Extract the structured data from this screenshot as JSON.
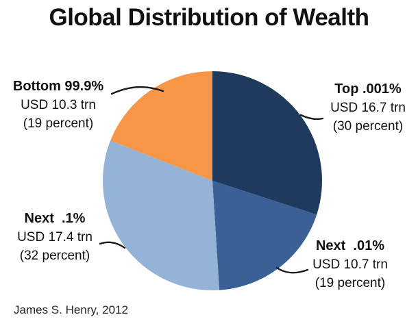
{
  "title": "Global Distribution of Wealth",
  "attribution": "James S. Henry, 2012",
  "colors": {
    "slice_top_001": "#1F3A5F",
    "slice_next_01": "#3A6095",
    "slice_next_1": "#95B3D7",
    "slice_bottom_999": "#F79646",
    "leader_line": "#1a1a1a",
    "text": "#111111",
    "background": "#ffffff"
  },
  "chart_data": {
    "type": "pie",
    "title": "Global Distribution of Wealth",
    "start_angle_deg": 0,
    "direction": "clockwise",
    "legend_position": "none",
    "units": "USD trillions",
    "slices": [
      {
        "label": "Top .001%",
        "value_label": "USD 16.7 trn",
        "percent_label": "(30 percent)",
        "usd_trn": 16.7,
        "percent": 30,
        "color": "#1F3A5F"
      },
      {
        "label": "Next  .01%",
        "value_label": "USD 10.7 trn",
        "percent_label": "(19 percent)",
        "usd_trn": 10.7,
        "percent": 19,
        "color": "#3A6095"
      },
      {
        "label": "Next  .1%",
        "value_label": "USD 17.4 trn",
        "percent_label": "(32 percent)",
        "usd_trn": 17.4,
        "percent": 32,
        "color": "#95B3D7"
      },
      {
        "label": "Bottom 99.9%",
        "value_label": "USD 10.3 trn",
        "percent_label": "(19 percent)",
        "usd_trn": 10.3,
        "percent": 19,
        "color": "#F79646"
      }
    ]
  }
}
